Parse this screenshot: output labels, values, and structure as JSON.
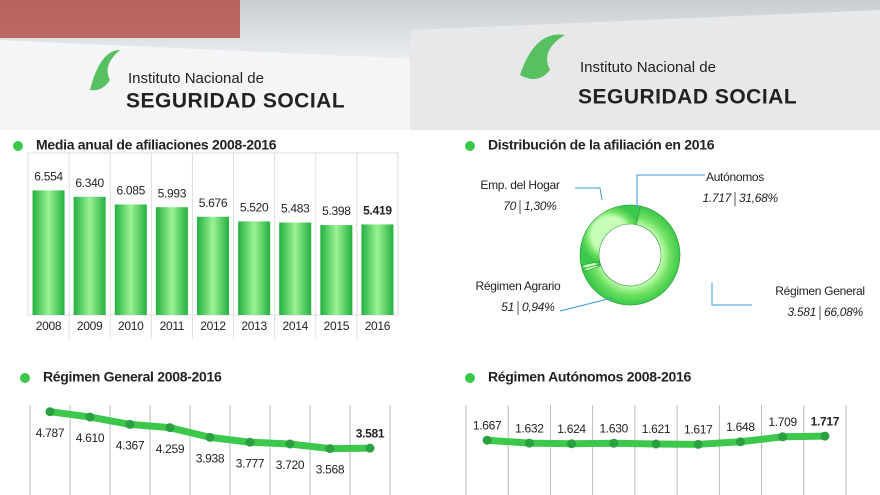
{
  "banner": {
    "signs": [
      {
        "line1": "Instituto Nacional de",
        "line2": "SEGURIDAD SOCIAL"
      },
      {
        "line1": "Instituto Nacional de",
        "line2": "SEGURIDAD SOCIAL"
      }
    ]
  },
  "chart_data": [
    {
      "type": "bar",
      "title": "Media anual de afiliaciones 2008-2016",
      "categories": [
        "2008",
        "2009",
        "2010",
        "2011",
        "2012",
        "2013",
        "2014",
        "2015",
        "2016"
      ],
      "values": [
        6554,
        6340,
        6085,
        5993,
        5676,
        5520,
        5483,
        5398,
        5419
      ],
      "value_labels": [
        "6.554",
        "6.340",
        "6.085",
        "5.993",
        "5.676",
        "5.520",
        "5.483",
        "5.398",
        "5.419"
      ],
      "value_label_colors": [
        "#222222",
        "#222222",
        "#222222",
        "#222222",
        "#222222",
        "#222222",
        "#222222",
        "#222222",
        "#e02020"
      ],
      "color": "#3cc84a",
      "ylim": [
        2400,
        6800
      ]
    },
    {
      "type": "donut",
      "title": "Distribución de la afiliación en 2016",
      "categories": [
        "Autónomos",
        "Régimen General",
        "Régimen Agrario",
        "Emp. del Hogar"
      ],
      "values": [
        1717,
        3581,
        51,
        70
      ],
      "value_labels": [
        "1.717",
        "3.581",
        "51",
        "70"
      ],
      "percents": [
        31.68,
        66.08,
        0.94,
        1.3
      ],
      "percent_labels": [
        "31,68%",
        "66,08%",
        "0,94%",
        "1,30%"
      ],
      "color": "#5ee060"
    },
    {
      "type": "line",
      "title": "Régimen General 2008-2016",
      "values": [
        4787,
        4610,
        4367,
        4259,
        3938,
        3777,
        3720,
        3568,
        3581
      ],
      "value_labels": [
        "4.787",
        "4.610",
        "4.367",
        "4.259",
        "3.938",
        "3.777",
        "3.720",
        "3.568",
        "3.581"
      ],
      "value_label_colors": [
        "#222222",
        "#222222",
        "#222222",
        "#222222",
        "#222222",
        "#222222",
        "#222222",
        "#222222",
        "#e02020"
      ],
      "color": "#3cc84a",
      "ylim": [
        2000,
        6000
      ]
    },
    {
      "type": "line",
      "title": "Régimen Autónomos 2008-2016",
      "values": [
        1667,
        1632,
        1624,
        1630,
        1621,
        1617,
        1648,
        1709,
        1717
      ],
      "value_labels": [
        "1.667",
        "1.632",
        "1.624",
        "1.630",
        "1.621",
        "1.617",
        "1.648",
        "1.709",
        "1.717"
      ],
      "value_label_colors": [
        "#222222",
        "#222222",
        "#222222",
        "#222222",
        "#222222",
        "#222222",
        "#222222",
        "#222222",
        "#e02020"
      ],
      "color": "#3cc84a",
      "ylim": [
        1000,
        2400
      ]
    }
  ]
}
